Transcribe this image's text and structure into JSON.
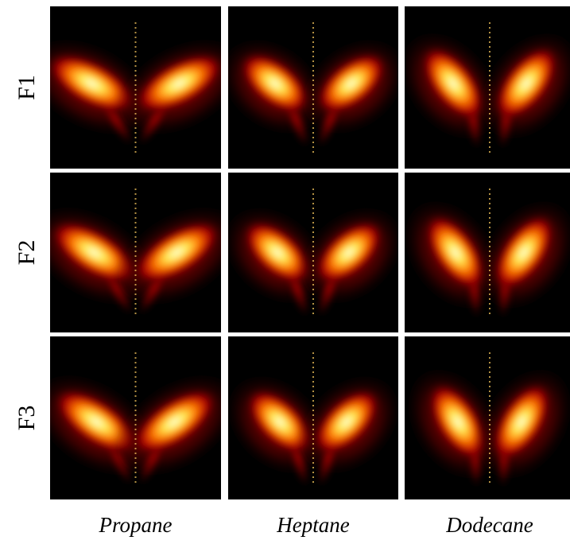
{
  "rows": [
    "F1",
    "F2",
    "F3"
  ],
  "columns": [
    "Propane",
    "Heptane",
    "Dodecane"
  ]
}
